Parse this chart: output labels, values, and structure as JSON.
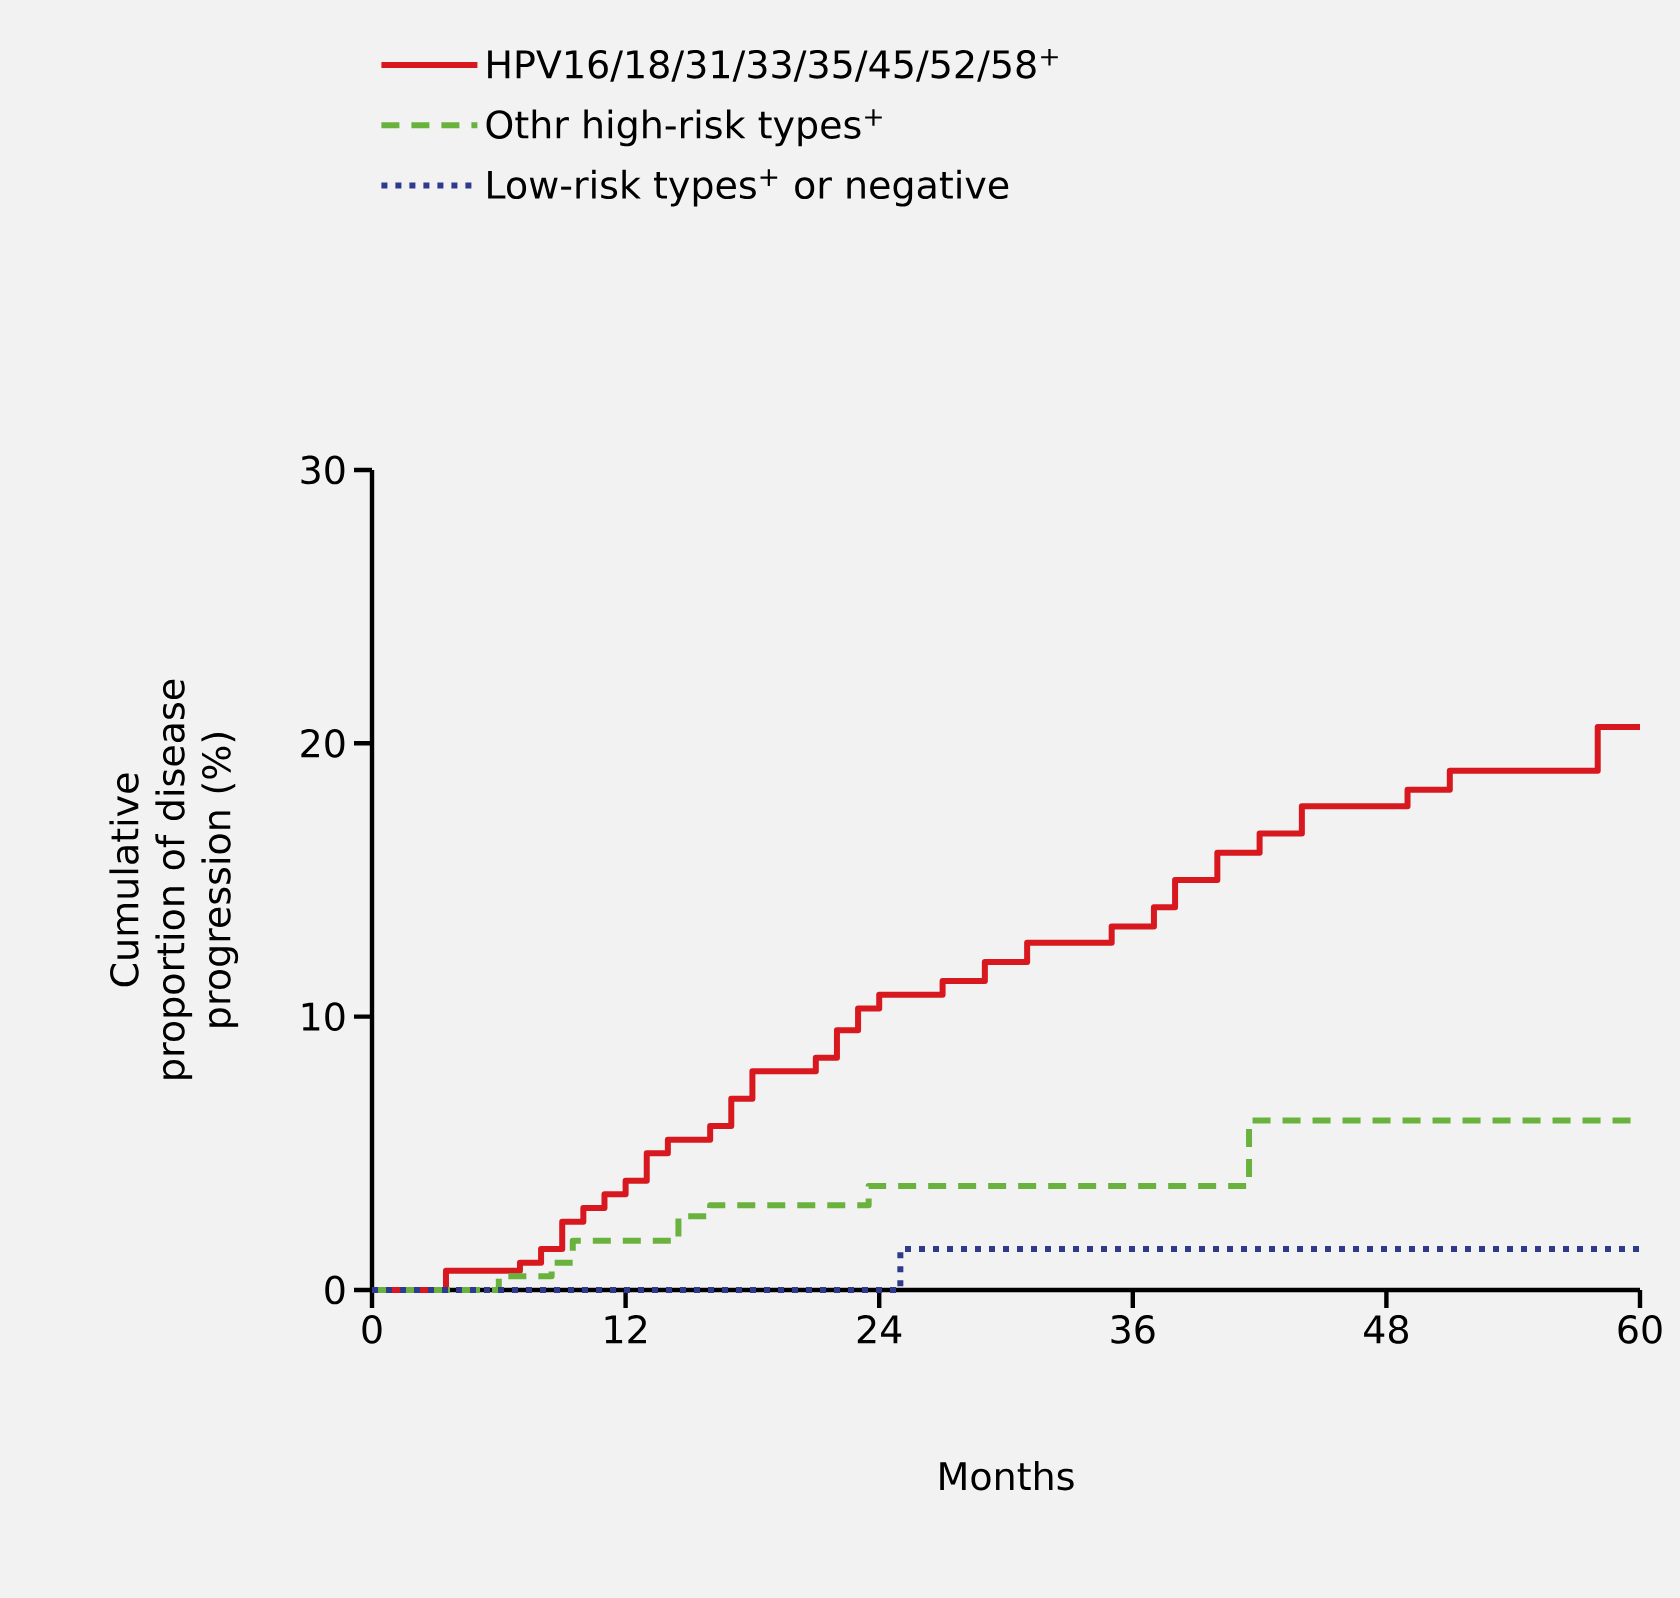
{
  "chart_data": {
    "type": "step",
    "xlabel": "Months",
    "ylabel": "Cumulative proportion of disease progression (%)",
    "xlim": [
      0,
      60
    ],
    "xticks": [
      0,
      12,
      24,
      36,
      48,
      60
    ],
    "ylim": [
      0,
      30
    ],
    "yticks": [
      0,
      10,
      20,
      30
    ],
    "grid": false,
    "legend": "top",
    "marker": "none",
    "series": [
      {
        "name": "HPV16/18/31/33/35/45/52/58$^{+}$",
        "color": "#d7191f",
        "line_style": "solid",
        "x": [
          0,
          3.5,
          7,
          8,
          9,
          10,
          11,
          12,
          13,
          14,
          16,
          17,
          18,
          21,
          22,
          23,
          24,
          27,
          29,
          31,
          35,
          37,
          38,
          40,
          42,
          44,
          49,
          51,
          58,
          60
        ],
        "values": [
          0,
          0.7,
          1.0,
          1.5,
          2.5,
          3,
          3.5,
          4,
          5,
          5.5,
          6,
          7,
          8,
          8.5,
          9.5,
          10.3,
          10.8,
          11.3,
          12,
          12.7,
          13.3,
          14,
          15,
          16,
          16.7,
          17.7,
          18.3,
          19,
          20.6,
          20.6
        ]
      },
      {
        "name": "Othr high-risk types$^{+}$",
        "color": "#6ab23e",
        "line_style": "dashed",
        "x": [
          0,
          6,
          8.5,
          9.5,
          14.5,
          16,
          23.5,
          41.5,
          60
        ],
        "values": [
          0,
          0.5,
          1,
          1.8,
          2.7,
          3.1,
          3.8,
          6.2,
          6.2
        ]
      },
      {
        "name": "Low-risk types$^{+}$ or negative",
        "color": "#2e3a8c",
        "line_style": "dotted",
        "x": [
          0,
          25,
          60
        ],
        "values": [
          0,
          1.5,
          1.5
        ]
      }
    ]
  }
}
